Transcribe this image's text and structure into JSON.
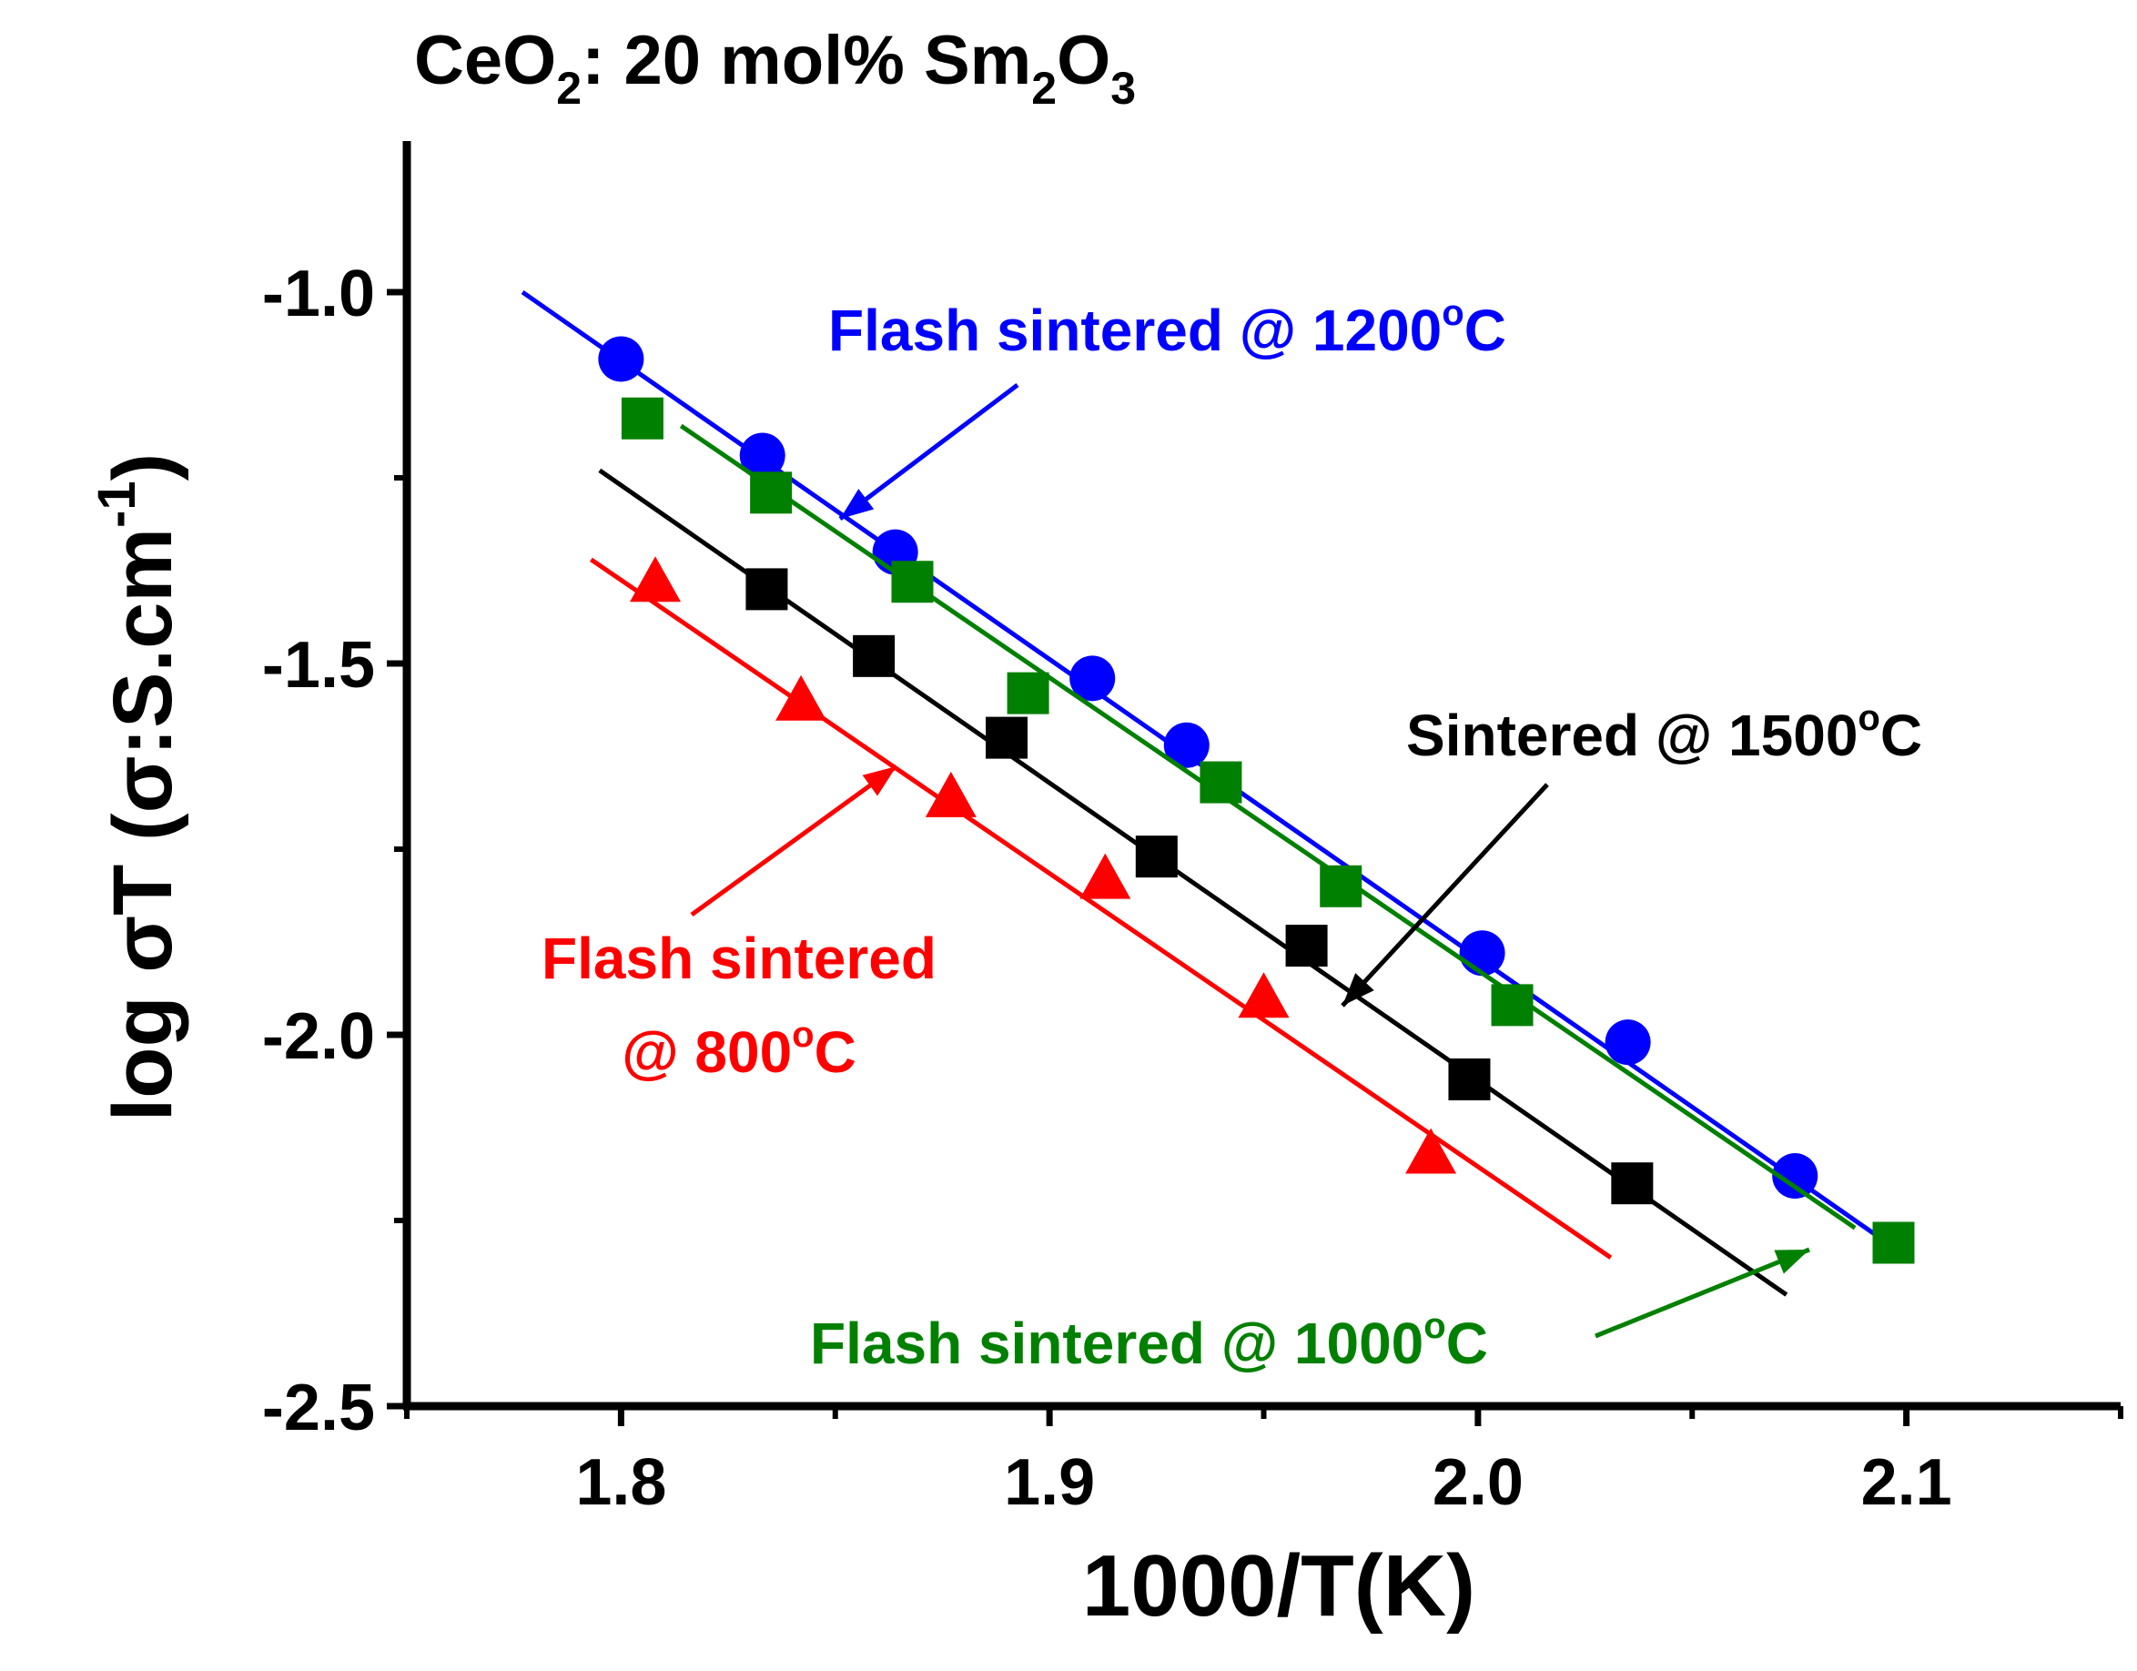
{
  "chart_data": {
    "type": "scatter",
    "title": {
      "prefix": "CeO",
      "sub1": "2",
      "middle": ": 20 mol% Sm",
      "sub2": "2",
      "o": "O",
      "sub3": "3"
    },
    "xlabel": "1000/T(K)",
    "ylabel": {
      "main": "log σT (σ:S.cm",
      "sup": "-1",
      "close": ")"
    },
    "xlim": [
      1.75,
      2.15
    ],
    "ylim": [
      -2.5,
      -0.8
    ],
    "x_ticks": [
      1.8,
      1.9,
      2.0,
      2.1
    ],
    "x_tick_labels": [
      "1.8",
      "1.9",
      "2.0",
      "2.1"
    ],
    "x_minor_ticks": [
      1.75,
      1.85,
      1.95,
      2.05,
      2.15
    ],
    "y_ticks": [
      -1.0,
      -1.5,
      -2.0,
      -2.5
    ],
    "y_tick_labels": [
      "-1.0",
      "-1.5",
      "-2.0",
      "-2.5"
    ],
    "y_minor_ticks": [
      -1.25,
      -1.75,
      -2.25
    ],
    "series": [
      {
        "name": "Flash sintered @ 1200°C",
        "color": "#0000ff",
        "marker": "circle",
        "x": [
          1.8,
          1.833,
          1.864,
          1.91,
          1.932,
          2.001,
          2.035,
          2.074
        ],
        "y": [
          -1.09,
          -1.22,
          -1.35,
          -1.52,
          -1.61,
          -1.89,
          -2.01,
          -2.19
        ],
        "fit": {
          "x": [
            1.777,
            2.093
          ],
          "y": [
            -1.0,
            -2.27
          ]
        }
      },
      {
        "name": "Flash sintered @ 1000°C",
        "color": "#008000",
        "marker": "square",
        "x": [
          1.805,
          1.835,
          1.868,
          1.895,
          1.94,
          1.968,
          2.008,
          2.097
        ],
        "y": [
          -1.17,
          -1.27,
          -1.39,
          -1.54,
          -1.66,
          -1.8,
          -1.96,
          -2.28
        ],
        "fit": {
          "x": [
            1.814,
            2.088
          ],
          "y": [
            -1.18,
            -2.26
          ]
        }
      },
      {
        "name": "Sintered @ 1500°C",
        "color": "#000000",
        "marker": "square",
        "x": [
          1.834,
          1.859,
          1.89,
          1.925,
          1.96,
          1.998,
          2.036
        ],
        "y": [
          -1.4,
          -1.49,
          -1.6,
          -1.76,
          -1.88,
          -2.06,
          -2.2
        ],
        "fit": {
          "x": [
            1.795,
            2.072
          ],
          "y": [
            -1.24,
            -2.35
          ]
        }
      },
      {
        "name": "Flash sintered @ 800°C",
        "color": "#ff0000",
        "marker": "triangle",
        "x": [
          1.808,
          1.842,
          1.877,
          1.913,
          1.95,
          1.989
        ],
        "y": [
          -1.39,
          -1.55,
          -1.68,
          -1.79,
          -1.95,
          -2.16
        ],
        "fit": {
          "x": [
            1.793,
            2.031
          ],
          "y": [
            -1.36,
            -2.3
          ]
        }
      }
    ],
    "annotations": [
      {
        "series": 0,
        "line1": "Flash sintered @ 1200",
        "line2": "",
        "suffix": "C",
        "degree": "o",
        "color": "#0000ff"
      },
      {
        "series": 2,
        "line1": "Sintered @ 1500",
        "line2": "",
        "suffix": "C",
        "degree": "o",
        "color": "#000000"
      },
      {
        "series": 3,
        "line1": "Flash sintered",
        "line2": "@ 800",
        "suffix": "C",
        "degree": "o",
        "color": "#ff0000"
      },
      {
        "series": 1,
        "line1": "Flash sintered @ 1000",
        "line2": "",
        "suffix": "C",
        "degree": "o",
        "color": "#008000"
      }
    ]
  }
}
